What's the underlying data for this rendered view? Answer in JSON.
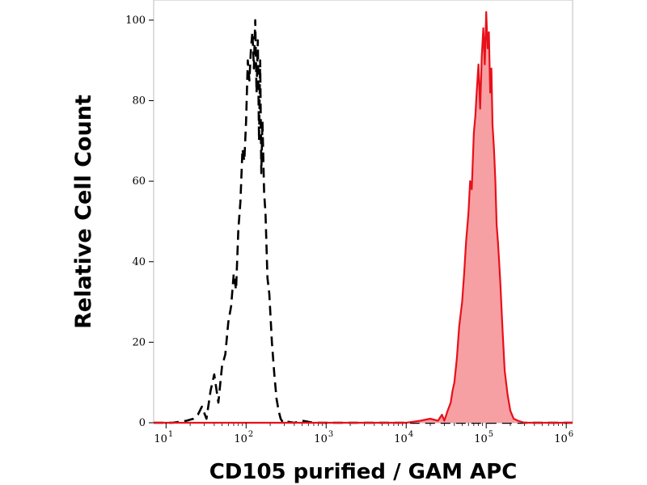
{
  "chart_data": {
    "type": "area",
    "xlabel": "CD105 purified / GAM APC",
    "ylabel": "Relative Cell Count",
    "x_scale": "log",
    "xlim": [
      7,
      1200000
    ],
    "ylim": [
      0,
      105
    ],
    "y_ticks": [
      0,
      20,
      40,
      60,
      80,
      100
    ],
    "x_ticks": [
      {
        "value": 10,
        "base": "10",
        "exp": "1"
      },
      {
        "value": 100,
        "base": "10",
        "exp": "2"
      },
      {
        "value": 1000,
        "base": "10",
        "exp": "3"
      },
      {
        "value": 10000,
        "base": "10",
        "exp": "4"
      },
      {
        "value": 100000,
        "base": "10",
        "exp": "5"
      },
      {
        "value": 1000000,
        "base": "10",
        "exp": "6"
      }
    ],
    "grid": false,
    "series": [
      {
        "style": "dashed",
        "color": "#000000",
        "x": [
          7,
          12,
          18,
          22,
          25,
          28,
          32,
          36,
          40,
          45,
          50,
          55,
          60,
          65,
          70,
          75,
          80,
          85,
          90,
          95,
          100,
          105,
          110,
          115,
          120,
          125,
          130,
          135,
          140,
          145,
          150,
          155,
          160,
          168,
          175,
          185,
          195,
          210,
          225,
          240,
          255,
          270,
          290,
          320,
          400,
          500,
          700,
          1000,
          2000,
          10000,
          100000,
          1200000
        ],
        "y": [
          0,
          0,
          0.5,
          1,
          2,
          4,
          1,
          8,
          12,
          5,
          14,
          17,
          25,
          29,
          37,
          33,
          48,
          55,
          68,
          65,
          75,
          90,
          85,
          93,
          97,
          88,
          100,
          82,
          95,
          70,
          90,
          62,
          75,
          57,
          52,
          36,
          32,
          20,
          12,
          6,
          3,
          1,
          0,
          0.3,
          0,
          0.5,
          0,
          0,
          0,
          0,
          0,
          0
        ]
      },
      {
        "style": "filled",
        "color": "#e8101a",
        "fill": "#f7a0a3",
        "x": [
          7,
          1000,
          10000,
          15000,
          20000,
          25000,
          28000,
          30000,
          33000,
          36000,
          38000,
          40000,
          43000,
          46000,
          50000,
          53000,
          56000,
          60000,
          63000,
          66000,
          70000,
          73000,
          76000,
          80000,
          84000,
          88000,
          92000,
          96000,
          100000,
          104000,
          108000,
          112000,
          116000,
          120000,
          125000,
          130000,
          135000,
          140000,
          150000,
          160000,
          170000,
          185000,
          200000,
          220000,
          250000,
          300000,
          400000,
          1200000
        ],
        "y": [
          0,
          0,
          0,
          0.5,
          1,
          0.5,
          2,
          0.5,
          3,
          5,
          8,
          10,
          16,
          24,
          30,
          37,
          45,
          52,
          60,
          58,
          72,
          76,
          82,
          89,
          78,
          91,
          98,
          89,
          102,
          93,
          97,
          82,
          88,
          74,
          68,
          60,
          49,
          45,
          35,
          23,
          13,
          7,
          3,
          1,
          0.5,
          0,
          0,
          0
        ]
      }
    ]
  }
}
